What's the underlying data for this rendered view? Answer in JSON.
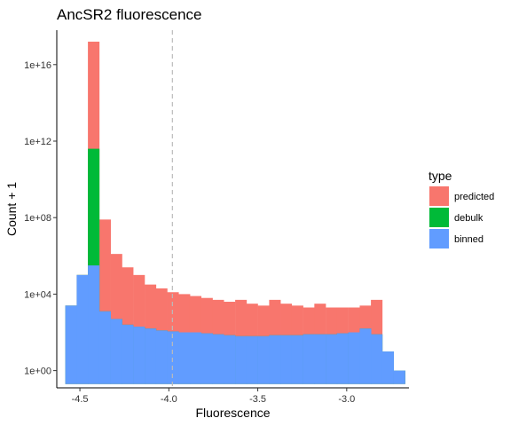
{
  "chart_data": {
    "type": "bar",
    "subtype": "stacked histogram",
    "title": "AncSR2 fluorescence",
    "xlabel": "Fluorescence",
    "ylabel": "Count + 1",
    "xlim": [
      -4.63,
      -2.65
    ],
    "y_scale": "log10",
    "ylim_log10": [
      -0.9,
      17.8
    ],
    "x_ticks": [
      -4.5,
      -4.0,
      -3.5,
      -3.0
    ],
    "x_tick_labels": [
      "-4.5",
      "-4.0",
      "-3.5",
      "-3.0"
    ],
    "y_ticks_log10": [
      0,
      4,
      8,
      12,
      16
    ],
    "y_tick_labels": [
      "1e+00",
      "1e+04",
      "1e+08",
      "1e+12",
      "1e+16"
    ],
    "bin_width": 0.0636,
    "bin_starts": [
      -4.582,
      -4.518,
      -4.455,
      -4.391,
      -4.327,
      -4.264,
      -4.2,
      -4.136,
      -4.073,
      -4.009,
      -3.945,
      -3.882,
      -3.818,
      -3.755,
      -3.691,
      -3.627,
      -3.564,
      -3.5,
      -3.436,
      -3.373,
      -3.309,
      -3.245,
      -3.182,
      -3.118,
      -3.055,
      -2.991,
      -2.927,
      -2.864,
      -2.8,
      -2.736
    ],
    "series_order_bottom_to_top": [
      "binned",
      "debulk",
      "predicted"
    ],
    "series": [
      {
        "name": "binned",
        "color": "#619CFF",
        "stack_top_log10": [
          3.4,
          5.0,
          5.5,
          3.1,
          2.7,
          2.4,
          2.3,
          2.2,
          2.1,
          2.05,
          2.0,
          2.0,
          1.95,
          1.9,
          1.85,
          1.8,
          1.8,
          1.8,
          1.85,
          1.85,
          1.85,
          1.9,
          1.9,
          1.9,
          1.95,
          2.0,
          2.2,
          1.9,
          1.0,
          0.0
        ]
      },
      {
        "name": "debulk",
        "color": "#00BA38",
        "stack_top_log10": [
          3.4,
          5.0,
          11.6,
          3.1,
          2.7,
          2.4,
          2.3,
          2.2,
          2.1,
          2.05,
          2.0,
          2.0,
          1.95,
          1.9,
          1.85,
          1.8,
          1.8,
          1.8,
          1.85,
          1.85,
          1.85,
          1.9,
          1.9,
          1.9,
          1.95,
          2.0,
          2.2,
          1.9,
          1.0,
          0.0
        ]
      },
      {
        "name": "predicted",
        "color": "#F8766D",
        "stack_top_log10": [
          3.4,
          5.0,
          17.2,
          7.9,
          6.1,
          5.4,
          5.0,
          4.5,
          4.3,
          4.1,
          4.0,
          3.9,
          3.8,
          3.7,
          3.6,
          3.7,
          3.5,
          3.4,
          3.7,
          3.5,
          3.4,
          3.3,
          3.5,
          3.3,
          3.3,
          3.3,
          3.4,
          3.7,
          1.0,
          0.0
        ]
      }
    ],
    "reference_line": {
      "x": -3.98,
      "style": "dashed",
      "color": "#BBBBBB"
    },
    "grid": false,
    "legend": {
      "title": "type",
      "position": "right",
      "entries": [
        {
          "label": "predicted",
          "color": "#F8766D"
        },
        {
          "label": "debulk",
          "color": "#00BA38"
        },
        {
          "label": "binned",
          "color": "#619CFF"
        }
      ]
    }
  }
}
